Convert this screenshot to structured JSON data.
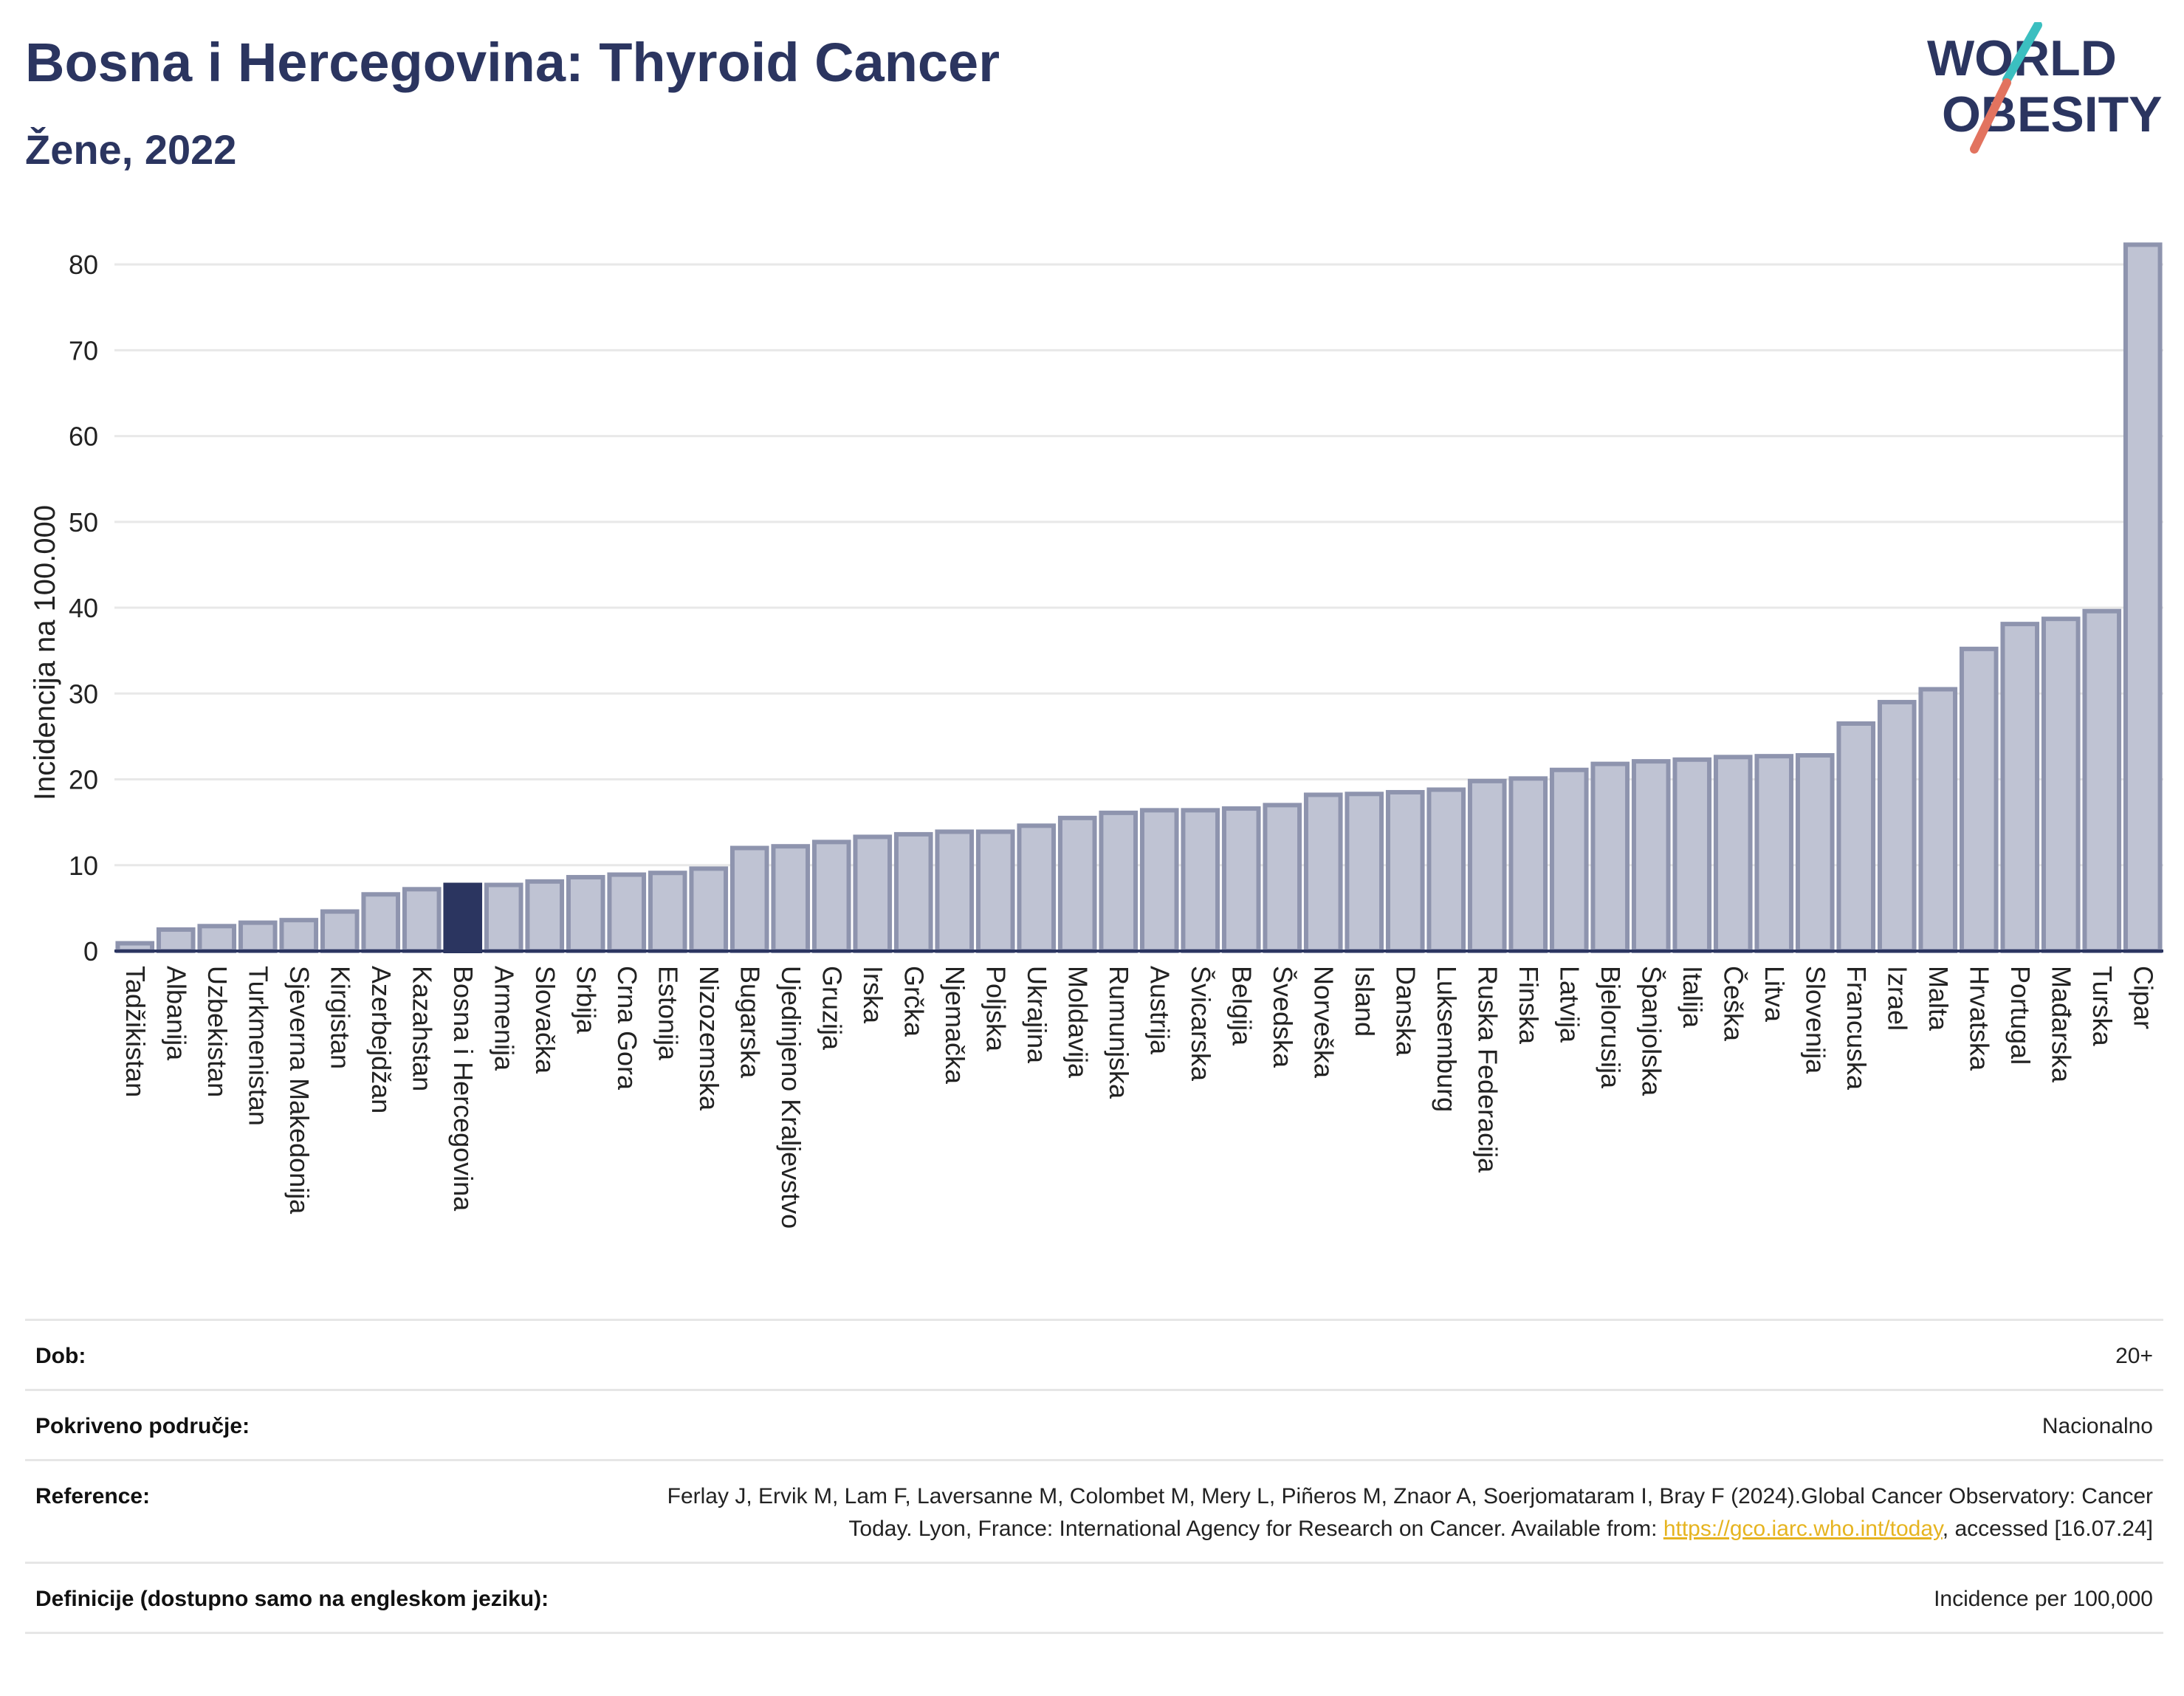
{
  "header": {
    "title": "Bosna i Hercegovina: Thyroid Cancer",
    "subtitle": "Žene, 2022"
  },
  "logo": {
    "line1": "WORLD",
    "line2": "OBESITY",
    "accent_teal": "#3bbfc0",
    "accent_coral": "#e2735f"
  },
  "colors": {
    "bar_fill": "#bfc3d3",
    "bar_stroke": "#8e94ae",
    "highlight_fill": "#2b3560",
    "axis": "#2b3560",
    "grid": "#e8e8e8"
  },
  "chart_data": {
    "type": "bar",
    "ylabel": "Incidencija na 100.000",
    "ylim": [
      0,
      85
    ],
    "yticks": [
      0,
      10,
      20,
      30,
      40,
      50,
      60,
      70,
      80
    ],
    "grid": true,
    "highlight": "Bosna i Hercegovina",
    "categories": [
      "Tadžikistan",
      "Albanija",
      "Uzbekistan",
      "Turkmenistan",
      "Sjeverna Makedonija",
      "Kirgistan",
      "Azerbejdžan",
      "Kazahstan",
      "Bosna i Hercegovina",
      "Armenija",
      "Slovačka",
      "Srbija",
      "Crna Gora",
      "Estonija",
      "Nizozemska",
      "Bugarska",
      "Ujedinjeno Kraljevstvo",
      "Gruzija",
      "Irska",
      "Grčka",
      "Njemačka",
      "Poljska",
      "Ukrajina",
      "Moldavija",
      "Rumunjska",
      "Austrija",
      "Švicarska",
      "Belgija",
      "Švedska",
      "Norveška",
      "Island",
      "Danska",
      "Luksemburg",
      "Ruska Federacija",
      "Finska",
      "Latvija",
      "Bjelorusija",
      "Španjolska",
      "Italija",
      "Češka",
      "Litva",
      "Slovenija",
      "Francuska",
      "Izrael",
      "Malta",
      "Hrvatska",
      "Portugal",
      "Mađarska",
      "Turska",
      "Cipar"
    ],
    "values": [
      0.9,
      2.5,
      2.9,
      3.3,
      3.6,
      4.6,
      6.6,
      7.2,
      7.7,
      7.7,
      8.1,
      8.6,
      8.9,
      9.1,
      9.6,
      12.0,
      12.2,
      12.7,
      13.3,
      13.6,
      13.9,
      13.9,
      14.6,
      15.5,
      16.1,
      16.4,
      16.4,
      16.6,
      17.0,
      18.2,
      18.3,
      18.5,
      18.8,
      19.8,
      20.1,
      21.1,
      21.8,
      22.1,
      22.3,
      22.6,
      22.7,
      22.8,
      26.5,
      29.0,
      30.5,
      35.2,
      38.1,
      38.7,
      39.6,
      82.3
    ]
  },
  "meta": [
    {
      "label": "Dob:",
      "value": "20+"
    },
    {
      "label": "Pokriveno područje:",
      "value": "Nacionalno"
    },
    {
      "label": "Reference:",
      "value_before_link": "Ferlay J, Ervik M, Lam F, Laversanne M, Colombet M, Mery L, Piñeros M, Znaor A, Soerjomataram I, Bray F (2024).Global Cancer Observatory: Cancer Today. Lyon, France: International Agency for Research on Cancer. Available from: ",
      "link_text": "https://gco.iarc.who.int/today",
      "value_after_link": ", accessed [16.07.24]"
    },
    {
      "label": "Definicije (dostupno samo na engleskom jeziku):",
      "value": "Incidence per 100,000"
    }
  ]
}
